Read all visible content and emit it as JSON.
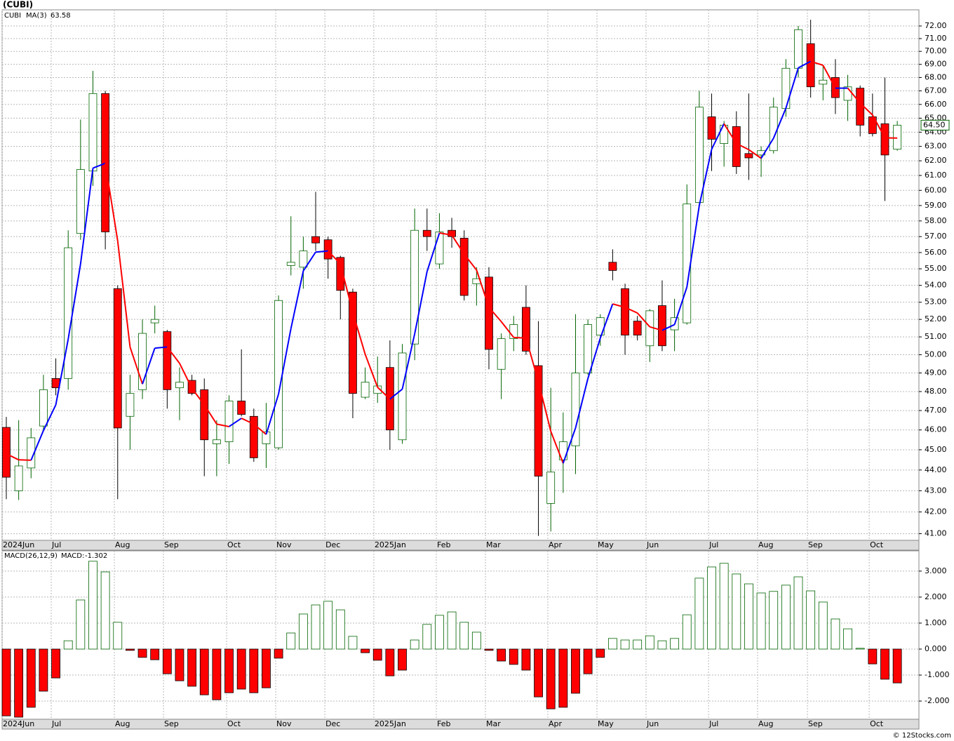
{
  "chart_data": [
    {
      "type": "candlestick",
      "title": "(CUBI)",
      "log_scale": true,
      "grid": true,
      "xlim": [
        -0.34,
        73.75
      ],
      "ylim": [
        40.7,
        73.3
      ],
      "xticks": [
        {
          "value": -0.34,
          "label": "2024Jun"
        },
        {
          "value": 3.63,
          "label": "Jul"
        },
        {
          "value": 8.73,
          "label": "Aug"
        },
        {
          "value": 12.7,
          "label": "Sep"
        },
        {
          "value": 17.8,
          "label": "Oct"
        },
        {
          "value": 21.77,
          "label": "Nov"
        },
        {
          "value": 25.74,
          "label": "Dec"
        },
        {
          "value": 29.7,
          "label": "2025Jan"
        },
        {
          "value": 34.75,
          "label": "Feb"
        },
        {
          "value": 38.72,
          "label": "Mar"
        },
        {
          "value": 43.76,
          "label": "Apr"
        },
        {
          "value": 47.73,
          "label": "May"
        },
        {
          "value": 51.7,
          "label": "Jun"
        },
        {
          "value": 56.75,
          "label": "Jul"
        },
        {
          "value": 60.71,
          "label": "Aug"
        },
        {
          "value": 64.74,
          "label": "Sep"
        },
        {
          "value": 69.73,
          "label": "Oct"
        }
      ],
      "yticks": [
        {
          "value": 41,
          "label": "41.00"
        },
        {
          "value": 42,
          "label": "42.00"
        },
        {
          "value": 43,
          "label": "43.00"
        },
        {
          "value": 44,
          "label": "44.00"
        },
        {
          "value": 45,
          "label": "45.00"
        },
        {
          "value": 46,
          "label": "46.00"
        },
        {
          "value": 47,
          "label": "47.00"
        },
        {
          "value": 48,
          "label": "48.00"
        },
        {
          "value": 49,
          "label": "49.00"
        },
        {
          "value": 50,
          "label": "50.00"
        },
        {
          "value": 51,
          "label": "51.00"
        },
        {
          "value": 52,
          "label": "52.00"
        },
        {
          "value": 53,
          "label": "53.00"
        },
        {
          "value": 54,
          "label": "54.00"
        },
        {
          "value": 55,
          "label": "55.00"
        },
        {
          "value": 56,
          "label": "56.00"
        },
        {
          "value": 57,
          "label": "57.00"
        },
        {
          "value": 58,
          "label": "58.00"
        },
        {
          "value": 59,
          "label": "59.00"
        },
        {
          "value": 60,
          "label": "60.00"
        },
        {
          "value": 61,
          "label": "61.00"
        },
        {
          "value": 62,
          "label": "62.00"
        },
        {
          "value": 63,
          "label": "63.00"
        },
        {
          "value": 64,
          "label": "64.00"
        },
        {
          "value": 65,
          "label": "65.00"
        },
        {
          "value": 66,
          "label": "66.00"
        },
        {
          "value": 67,
          "label": "67.00"
        },
        {
          "value": 68,
          "label": "68.00"
        },
        {
          "value": 69,
          "label": "69.00"
        },
        {
          "value": 70,
          "label": "70.00"
        },
        {
          "value": 71,
          "label": "71.00"
        },
        {
          "value": 72,
          "label": "72.00"
        }
      ],
      "series": [
        {
          "name": "CUBI",
          "up_color": "#006400",
          "down_color": "#ff0000",
          "last_label": "64.50",
          "open": [
            46.13,
            43.0,
            44.1,
            46.2,
            48.7,
            48.7,
            57.2,
            61.3,
            66.8,
            53.8,
            46.7,
            48.1,
            51.8,
            51.3,
            48.2,
            48.6,
            48.1,
            45.3,
            45.4,
            47.5,
            46.7,
            45.3,
            45.1,
            55.2,
            55.1,
            57.0,
            56.8,
            55.7,
            53.6,
            47.7,
            47.9,
            49.3,
            45.5,
            50.6,
            57.4,
            55.3,
            57.4,
            56.9,
            54.1,
            54.5,
            49.2,
            50.9,
            52.7,
            49.4,
            42.4,
            44.5,
            45.2,
            49.0,
            51.1,
            55.4,
            53.8,
            51.9,
            50.5,
            52.8,
            51.4,
            51.8,
            59.2,
            65.1,
            63.2,
            64.4,
            62.5,
            62.4,
            62.7,
            65.7,
            68.7,
            70.6,
            67.5,
            68.0,
            66.3,
            67.2,
            65.1,
            64.6,
            62.8
          ],
          "high": [
            46.67,
            46.5,
            46.1,
            48.9,
            49.8,
            57.4,
            64.9,
            68.5,
            67.0,
            54.0,
            48.9,
            52.0,
            52.8,
            51.4,
            49.3,
            48.9,
            48.7,
            46.5,
            47.8,
            50.3,
            47.1,
            47.4,
            53.4,
            58.3,
            57.0,
            59.9,
            57.0,
            55.8,
            53.8,
            49.3,
            49.9,
            50.8,
            50.6,
            58.8,
            58.8,
            58.5,
            58.2,
            57.4,
            55.1,
            55.1,
            51.2,
            52.2,
            54.0,
            51.9,
            48.2,
            46.9,
            52.3,
            52.0,
            52.3,
            56.2,
            54.1,
            52.2,
            52.6,
            54.3,
            53.2,
            60.4,
            67.0,
            66.8,
            64.8,
            65.5,
            66.8,
            63.0,
            66.5,
            69.4,
            72.0,
            72.5,
            68.9,
            69.4,
            68.2,
            67.4,
            66.8,
            68.0,
            64.8
          ],
          "low": [
            42.6,
            42.56,
            43.6,
            45.9,
            47.8,
            48.1,
            56.8,
            60.3,
            56.2,
            42.6,
            45.0,
            47.6,
            51.2,
            47.1,
            46.5,
            47.8,
            43.7,
            43.7,
            44.3,
            46.7,
            44.4,
            44.1,
            45.0,
            54.6,
            53.8,
            56.1,
            54.4,
            52.0,
            46.6,
            47.6,
            47.4,
            45.0,
            45.3,
            49.7,
            56.1,
            55.0,
            56.3,
            53.1,
            52.8,
            49.2,
            47.6,
            50.2,
            50.0,
            40.9,
            41.1,
            42.9,
            43.8,
            48.9,
            50.5,
            54.3,
            50.0,
            50.8,
            49.6,
            50.2,
            50.2,
            51.7,
            59.1,
            61.3,
            61.6,
            61.1,
            60.7,
            60.9,
            62.5,
            65.1,
            68.0,
            66.5,
            66.3,
            65.3,
            64.8,
            63.7,
            63.7,
            59.3,
            62.7
          ],
          "close": [
            43.65,
            44.2,
            45.6,
            48.1,
            48.2,
            56.3,
            61.4,
            66.8,
            57.3,
            46.1,
            47.9,
            51.2,
            52.0,
            48.1,
            48.5,
            47.9,
            45.5,
            45.5,
            47.5,
            46.8,
            44.6,
            45.9,
            53.1,
            55.4,
            56.1,
            56.6,
            55.6,
            53.7,
            47.9,
            48.5,
            48.3,
            46.0,
            50.1,
            57.4,
            57.0,
            57.3,
            57.0,
            53.4,
            54.4,
            50.3,
            50.9,
            51.7,
            50.2,
            43.7,
            43.9,
            45.4,
            49.0,
            51.7,
            52.1,
            54.9,
            51.1,
            51.1,
            52.5,
            50.5,
            52.1,
            59.1,
            65.8,
            63.5,
            64.5,
            61.6,
            62.2,
            62.7,
            65.8,
            68.7,
            71.7,
            67.3,
            67.8,
            66.5,
            67.3,
            64.5,
            63.9,
            62.4,
            64.5
          ]
        },
        {
          "name": "MA(3)",
          "type": "line",
          "up_color": "#0000ff",
          "down_color": "#ff0000",
          "value_label": "63.58",
          "values": [
            44.8,
            44.5,
            44.48,
            45.97,
            47.3,
            50.87,
            55.3,
            61.5,
            61.83,
            56.73,
            50.43,
            48.4,
            50.37,
            50.43,
            49.53,
            48.17,
            47.3,
            46.3,
            46.17,
            46.6,
            46.3,
            45.77,
            47.87,
            51.47,
            54.87,
            56.03,
            56.1,
            55.3,
            52.4,
            50.03,
            48.23,
            47.6,
            48.13,
            51.17,
            54.83,
            57.23,
            57.1,
            55.9,
            54.93,
            52.7,
            51.87,
            50.97,
            50.93,
            48.53,
            45.93,
            44.33,
            46.1,
            48.7,
            50.93,
            52.9,
            52.7,
            52.37,
            51.57,
            51.37,
            51.7,
            53.9,
            59.0,
            62.8,
            64.6,
            63.2,
            62.77,
            62.17,
            63.57,
            65.73,
            68.73,
            69.23,
            68.93,
            67.2,
            67.2,
            66.1,
            65.23,
            63.6,
            63.58
          ]
        }
      ]
    },
    {
      "type": "bar",
      "grid": true,
      "xlim": [
        -0.34,
        73.75
      ],
      "ylim": [
        -2.7,
        3.78
      ],
      "yticks": [
        {
          "value": -2,
          "label": "-2.000"
        },
        {
          "value": -1,
          "label": "-1.000"
        },
        {
          "value": 0,
          "label": "0.000"
        },
        {
          "value": 1,
          "label": "1.000"
        },
        {
          "value": 2,
          "label": "2.000"
        },
        {
          "value": 3,
          "label": "3.000"
        }
      ],
      "series": [
        {
          "name": "MACD(26,12,9)",
          "value_name": "MACD:",
          "value_label": "-1.302",
          "up_color": "#006400",
          "down_color": "#ff0000",
          "values": [
            -2.57,
            -2.62,
            -2.24,
            -1.62,
            -1.11,
            0.32,
            1.89,
            3.38,
            2.97,
            1.03,
            -0.05,
            -0.32,
            -0.41,
            -0.95,
            -1.22,
            -1.43,
            -1.76,
            -1.95,
            -1.68,
            -1.54,
            -1.68,
            -1.49,
            -0.35,
            0.62,
            1.35,
            1.7,
            1.84,
            1.51,
            0.49,
            -0.14,
            -0.43,
            -1.03,
            -0.81,
            0.35,
            0.95,
            1.3,
            1.43,
            1.03,
            0.65,
            -0.05,
            -0.46,
            -0.59,
            -0.81,
            -1.84,
            -2.3,
            -2.24,
            -1.7,
            -0.95,
            -0.32,
            0.41,
            0.35,
            0.35,
            0.51,
            0.32,
            0.41,
            1.32,
            2.73,
            3.16,
            3.3,
            2.89,
            2.51,
            2.16,
            2.22,
            2.46,
            2.78,
            2.24,
            1.81,
            1.16,
            0.78,
            0.03,
            -0.57,
            -1.16,
            -1.302
          ]
        }
      ]
    }
  ],
  "footer": "© 12Stocks.com"
}
